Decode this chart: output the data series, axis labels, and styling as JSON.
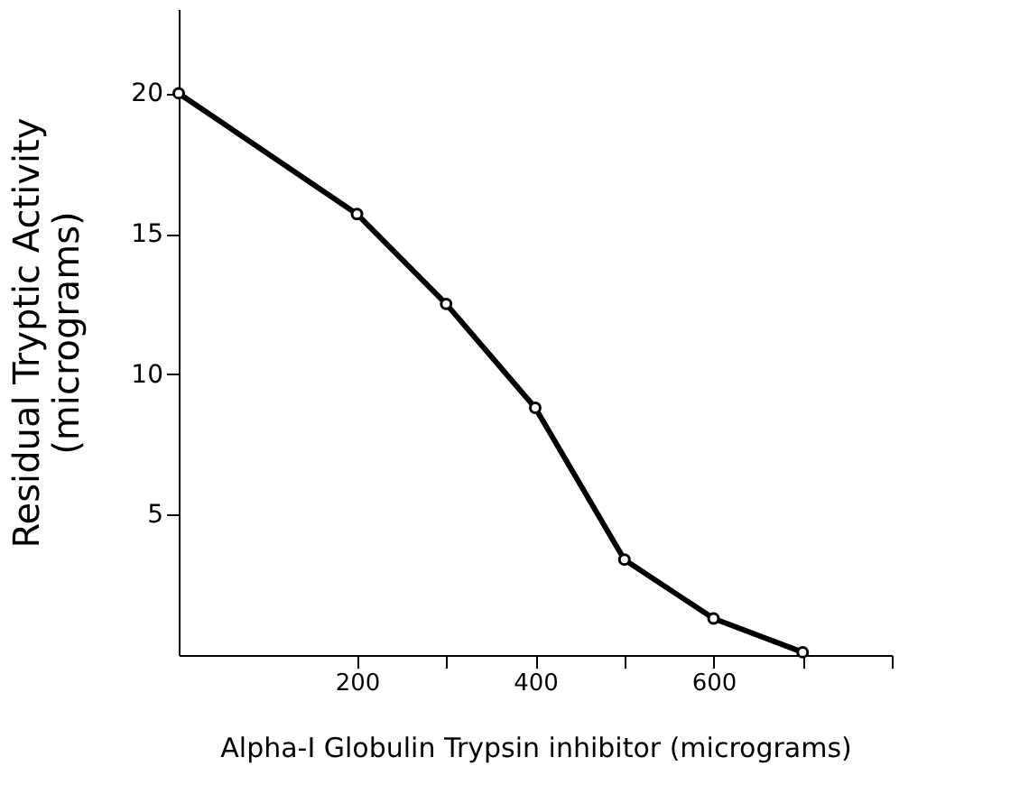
{
  "chart_data": {
    "type": "line",
    "xlabel": "Alpha-I Globulin Trypsin inhibitor (micrograms)",
    "ylabel": "Residual Tryptic Activity\n(micrograms)",
    "x": [
      0,
      200,
      300,
      400,
      500,
      600,
      700
    ],
    "series": [
      {
        "color": "#000000",
        "values": [
          20,
          15.7,
          12.5,
          8.8,
          3.4,
          1.3,
          0.1
        ]
      }
    ],
    "xlim": [
      0,
      800
    ],
    "xticks": [
      200,
      {
        "value": 300,
        "label": null
      },
      400,
      {
        "value": 500,
        "label": null
      },
      600,
      {
        "value": 700,
        "label": null
      },
      {
        "value": 800,
        "label": null
      }
    ],
    "ylim": [
      0,
      23
    ],
    "yticks": [
      5,
      10,
      15,
      20
    ],
    "grid": false,
    "marker": "circle",
    "line_style": "solid"
  }
}
